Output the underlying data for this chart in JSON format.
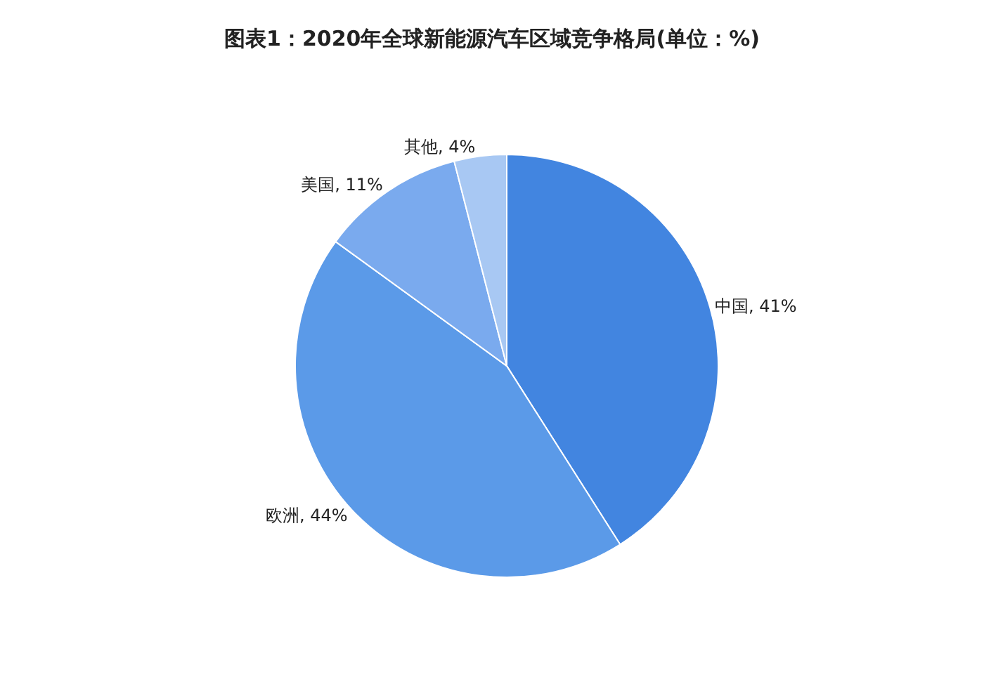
{
  "chart_data": {
    "type": "pie",
    "title": "图表1：2020年全球新能源汽车区域竞争格局(单位：%)",
    "categories": [
      "中国",
      "欧洲",
      "美国",
      "其他"
    ],
    "values": [
      41,
      44,
      11,
      4
    ],
    "value_labels": [
      "41%",
      "44%",
      "11%",
      "4%"
    ],
    "colors": [
      "#4285e0",
      "#5b9ae8",
      "#7aaaee",
      "#a8c8f3"
    ],
    "legend": false
  }
}
